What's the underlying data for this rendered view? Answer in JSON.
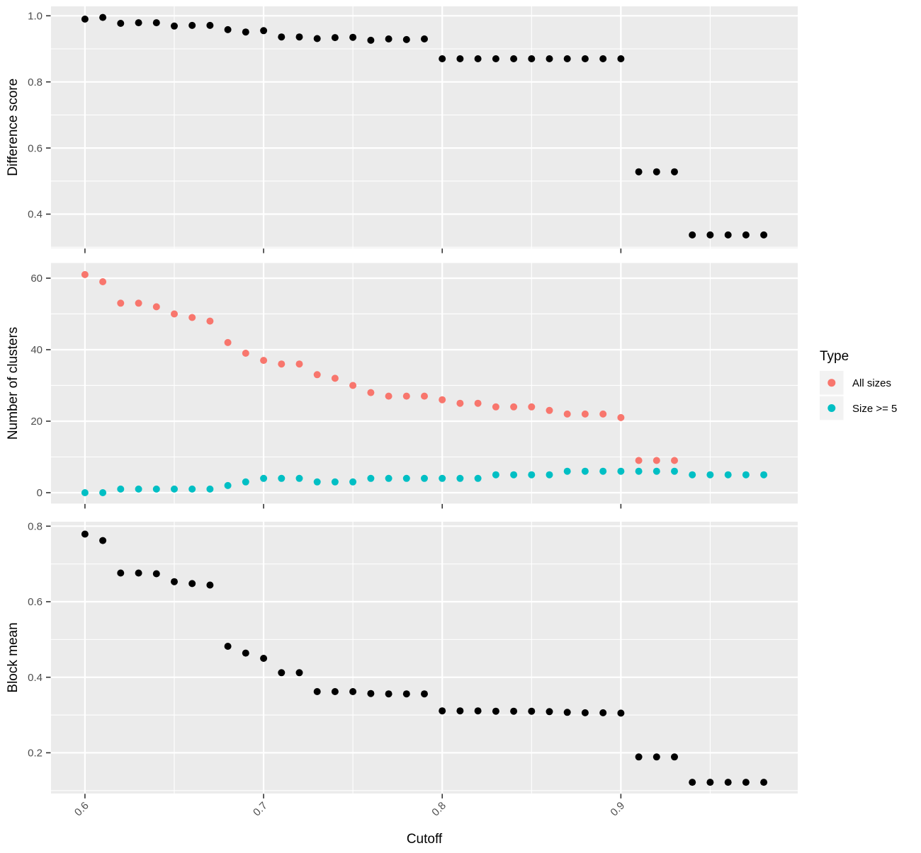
{
  "x_axis": {
    "title": "Cutoff",
    "tick_labels": [
      "0.6",
      "0.7",
      "0.8",
      "0.9"
    ],
    "tick_values": [
      0.6,
      0.7,
      0.8,
      0.9
    ],
    "minor_values": [
      0.65,
      0.75,
      0.85,
      0.95
    ],
    "range": [
      0.581,
      0.999
    ]
  },
  "legend": {
    "title": "Type",
    "items": [
      {
        "label": "All sizes",
        "color": "#F8766D"
      },
      {
        "label": "Size >= 5",
        "color": "#00BFC4"
      }
    ]
  },
  "style": {
    "panel_bg": "#EBEBEB",
    "grid_color": "#FFFFFF",
    "tick_text_color": "#4D4D4D",
    "axis_title_color": "#000000",
    "tick_mark_color": "#333333",
    "legend_key_bg": "#F2F2F2",
    "black_point_color": "#000000"
  },
  "chart_data": [
    {
      "type": "scatter",
      "ylabel": "Difference score",
      "y_tick_labels": [
        "1.0",
        "0.8",
        "0.6",
        "0.4"
      ],
      "y_tick_values": [
        1.0,
        0.8,
        0.6,
        0.4
      ],
      "y_minor_values": [
        0.9,
        0.7,
        0.5,
        0.3
      ],
      "ylim": [
        0.297,
        1.0285
      ],
      "series": [
        {
          "name": "Difference score",
          "color": "#000000",
          "x": [
            0.6,
            0.61,
            0.62,
            0.63,
            0.64,
            0.65,
            0.66,
            0.67,
            0.68,
            0.69,
            0.7,
            0.71,
            0.72,
            0.73,
            0.74,
            0.75,
            0.76,
            0.77,
            0.78,
            0.79,
            0.8,
            0.81,
            0.82,
            0.83,
            0.84,
            0.85,
            0.86,
            0.87,
            0.88,
            0.89,
            0.9,
            0.91,
            0.92,
            0.93,
            0.94,
            0.95,
            0.96,
            0.97,
            0.98
          ],
          "y": [
            0.99,
            0.995,
            0.977,
            0.979,
            0.979,
            0.969,
            0.971,
            0.971,
            0.958,
            0.951,
            0.955,
            0.936,
            0.936,
            0.931,
            0.934,
            0.935,
            0.926,
            0.93,
            0.928,
            0.93,
            0.87,
            0.87,
            0.87,
            0.87,
            0.87,
            0.87,
            0.87,
            0.87,
            0.87,
            0.87,
            0.87,
            0.528,
            0.528,
            0.528,
            0.337,
            0.337,
            0.337,
            0.337,
            0.337
          ]
        }
      ]
    },
    {
      "type": "scatter",
      "ylabel": "Number of clusters",
      "y_tick_labels": [
        "60",
        "40",
        "20",
        "0"
      ],
      "y_tick_values": [
        60,
        40,
        20,
        0
      ],
      "y_minor_values": [
        50,
        30,
        10
      ],
      "ylim": [
        -3.05,
        64.25
      ],
      "series": [
        {
          "name": "All sizes",
          "color": "#F8766D",
          "x": [
            0.6,
            0.61,
            0.62,
            0.63,
            0.64,
            0.65,
            0.66,
            0.67,
            0.68,
            0.69,
            0.7,
            0.71,
            0.72,
            0.73,
            0.74,
            0.75,
            0.76,
            0.77,
            0.78,
            0.79,
            0.8,
            0.81,
            0.82,
            0.83,
            0.84,
            0.85,
            0.86,
            0.87,
            0.88,
            0.89,
            0.9,
            0.91,
            0.92,
            0.93
          ],
          "y": [
            61,
            59,
            53,
            53,
            52,
            50,
            49,
            48,
            42,
            39,
            37,
            36,
            36,
            33,
            32,
            30,
            28,
            27,
            27,
            27,
            26,
            25,
            25,
            24,
            24,
            24,
            23,
            22,
            22,
            22,
            21,
            9,
            9,
            9
          ]
        },
        {
          "name": "Size >= 5",
          "color": "#00BFC4",
          "x": [
            0.6,
            0.61,
            0.62,
            0.63,
            0.64,
            0.65,
            0.66,
            0.67,
            0.68,
            0.69,
            0.7,
            0.71,
            0.72,
            0.73,
            0.74,
            0.75,
            0.76,
            0.77,
            0.78,
            0.79,
            0.8,
            0.81,
            0.82,
            0.83,
            0.84,
            0.85,
            0.86,
            0.87,
            0.88,
            0.89,
            0.9,
            0.91,
            0.92,
            0.93,
            0.94,
            0.95,
            0.96,
            0.97,
            0.98
          ],
          "y": [
            0,
            0,
            1,
            1,
            1,
            1,
            1,
            1,
            2,
            3,
            4,
            4,
            4,
            3,
            3,
            3,
            4,
            4,
            4,
            4,
            4,
            4,
            4,
            5,
            5,
            5,
            5,
            6,
            6,
            6,
            6,
            6,
            6,
            6,
            5,
            5,
            5,
            5,
            5
          ]
        }
      ]
    },
    {
      "type": "scatter",
      "ylabel": "Block mean",
      "y_tick_labels": [
        "0.8",
        "0.6",
        "0.4",
        "0.2"
      ],
      "y_tick_values": [
        0.8,
        0.6,
        0.4,
        0.2
      ],
      "y_minor_values": [
        0.7,
        0.5,
        0.3,
        0.1
      ],
      "ylim": [
        0.0923,
        0.8118
      ],
      "series": [
        {
          "name": "Block mean",
          "color": "#000000",
          "x": [
            0.6,
            0.61,
            0.62,
            0.63,
            0.64,
            0.65,
            0.66,
            0.67,
            0.68,
            0.69,
            0.7,
            0.71,
            0.72,
            0.73,
            0.74,
            0.75,
            0.76,
            0.77,
            0.78,
            0.79,
            0.8,
            0.81,
            0.82,
            0.83,
            0.84,
            0.85,
            0.86,
            0.87,
            0.88,
            0.89,
            0.9,
            0.91,
            0.92,
            0.93,
            0.94,
            0.95,
            0.96,
            0.97,
            0.98
          ],
          "y": [
            0.779,
            0.762,
            0.676,
            0.676,
            0.674,
            0.653,
            0.648,
            0.644,
            0.482,
            0.464,
            0.45,
            0.412,
            0.412,
            0.362,
            0.362,
            0.362,
            0.357,
            0.356,
            0.356,
            0.356,
            0.311,
            0.311,
            0.311,
            0.31,
            0.31,
            0.31,
            0.309,
            0.307,
            0.306,
            0.306,
            0.305,
            0.189,
            0.189,
            0.189,
            0.122,
            0.122,
            0.122,
            0.122,
            0.122
          ]
        }
      ]
    }
  ]
}
